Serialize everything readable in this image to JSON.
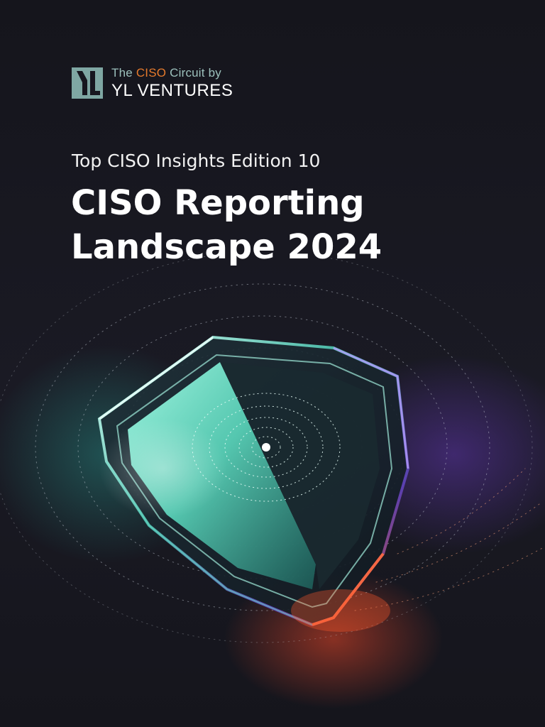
{
  "logo": {
    "line1_prefix": "The ",
    "line1_accent": "CISO",
    "line1_suffix": " Circuit by",
    "line2": "YL VENTURES",
    "colors": {
      "mark": "#7fa7a3",
      "accent": "#e57a2c",
      "text": "#9cc0bc"
    }
  },
  "kicker": "Top CISO Insights Edition 10",
  "title": {
    "line1": "CISO Reporting",
    "line2": "Landscape 2024"
  },
  "illustration": {
    "icon": "glass-shield-icon",
    "colors": {
      "teal": "#7ff5dc",
      "purple": "#7a4fd6",
      "orange": "#e8502a",
      "background": "#17171f"
    }
  }
}
